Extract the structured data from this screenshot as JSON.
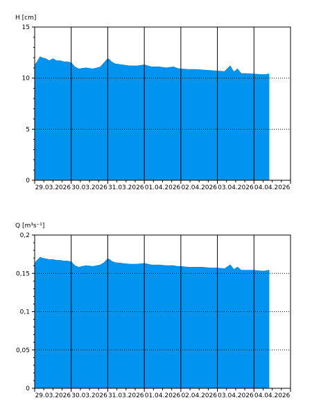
{
  "chart_data": [
    {
      "type": "area",
      "ylabel": "H [cm]",
      "ylim": [
        0,
        15
      ],
      "yticks": [
        0,
        5,
        10,
        15
      ],
      "ytick_labels": [
        "0",
        "5",
        "10",
        "15"
      ],
      "xlim_days": [
        0,
        7
      ],
      "xtick_labels": [
        "29.03.2026",
        "30.03.2026",
        "31.03.2026",
        "01.04.2026",
        "02.04.2026",
        "03.04.2026",
        "04.04.2026"
      ],
      "dotted_grid_y": [
        5,
        10
      ],
      "day_separators": true,
      "fill_color": "#0094F0",
      "x": [
        0,
        0.05,
        0.15,
        0.2,
        0.3,
        0.4,
        0.5,
        0.6,
        0.7,
        0.8,
        0.9,
        1.0,
        1.1,
        1.2,
        1.4,
        1.6,
        1.8,
        1.9,
        2.0,
        2.05,
        2.1,
        2.2,
        2.4,
        2.6,
        2.8,
        3.0,
        3.1,
        3.2,
        3.4,
        3.6,
        3.8,
        3.9,
        4.0,
        4.2,
        4.4,
        4.6,
        4.8,
        5.0,
        5.2,
        5.35,
        5.45,
        5.55,
        5.65,
        5.75,
        6.0,
        6.2,
        6.3,
        6.4,
        6.42
      ],
      "y": [
        11.3,
        11.5,
        12.1,
        12.0,
        11.9,
        11.7,
        11.9,
        11.7,
        11.7,
        11.6,
        11.6,
        11.5,
        11.1,
        10.9,
        11.0,
        10.9,
        11.1,
        11.5,
        11.9,
        11.8,
        11.6,
        11.4,
        11.3,
        11.2,
        11.2,
        11.3,
        11.2,
        11.1,
        11.1,
        11.0,
        11.1,
        10.95,
        10.9,
        10.85,
        10.85,
        10.8,
        10.75,
        10.7,
        10.65,
        11.2,
        10.6,
        10.9,
        10.45,
        10.45,
        10.4,
        10.35,
        10.35,
        10.4,
        10.4
      ]
    },
    {
      "type": "area",
      "ylabel": "Q [m³s⁻¹]",
      "ylim": [
        0,
        0.2
      ],
      "yticks": [
        0,
        0.05,
        0.1,
        0.15,
        0.2
      ],
      "ytick_labels": [
        "0",
        "0,05",
        "0,1",
        "0,15",
        "0,2"
      ],
      "xlim_days": [
        0,
        7
      ],
      "xtick_labels": [
        "29.03.2026",
        "30.03.2026",
        "31.03.2026",
        "01.04.2026",
        "02.04.2026",
        "03.04.2026",
        "04.04.2026"
      ],
      "dotted_grid_y": [
        0.05,
        0.1,
        0.15
      ],
      "day_separators": true,
      "fill_color": "#0094F0",
      "x": [
        0,
        0.05,
        0.15,
        0.2,
        0.3,
        0.4,
        0.5,
        0.6,
        0.7,
        0.8,
        0.9,
        1.0,
        1.1,
        1.2,
        1.4,
        1.6,
        1.8,
        1.9,
        2.0,
        2.05,
        2.1,
        2.2,
        2.4,
        2.6,
        2.8,
        3.0,
        3.1,
        3.2,
        3.4,
        3.6,
        3.8,
        3.9,
        4.0,
        4.2,
        4.4,
        4.6,
        4.8,
        5.0,
        5.2,
        5.35,
        5.45,
        5.55,
        5.65,
        5.75,
        6.0,
        6.2,
        6.3,
        6.4,
        6.42
      ],
      "y": [
        0.163,
        0.166,
        0.171,
        0.17,
        0.169,
        0.168,
        0.168,
        0.167,
        0.167,
        0.166,
        0.166,
        0.165,
        0.16,
        0.158,
        0.16,
        0.159,
        0.161,
        0.164,
        0.169,
        0.168,
        0.166,
        0.164,
        0.163,
        0.162,
        0.162,
        0.163,
        0.162,
        0.161,
        0.161,
        0.16,
        0.16,
        0.159,
        0.159,
        0.158,
        0.158,
        0.158,
        0.157,
        0.157,
        0.156,
        0.161,
        0.155,
        0.158,
        0.154,
        0.154,
        0.154,
        0.153,
        0.153,
        0.154,
        0.154
      ]
    }
  ]
}
